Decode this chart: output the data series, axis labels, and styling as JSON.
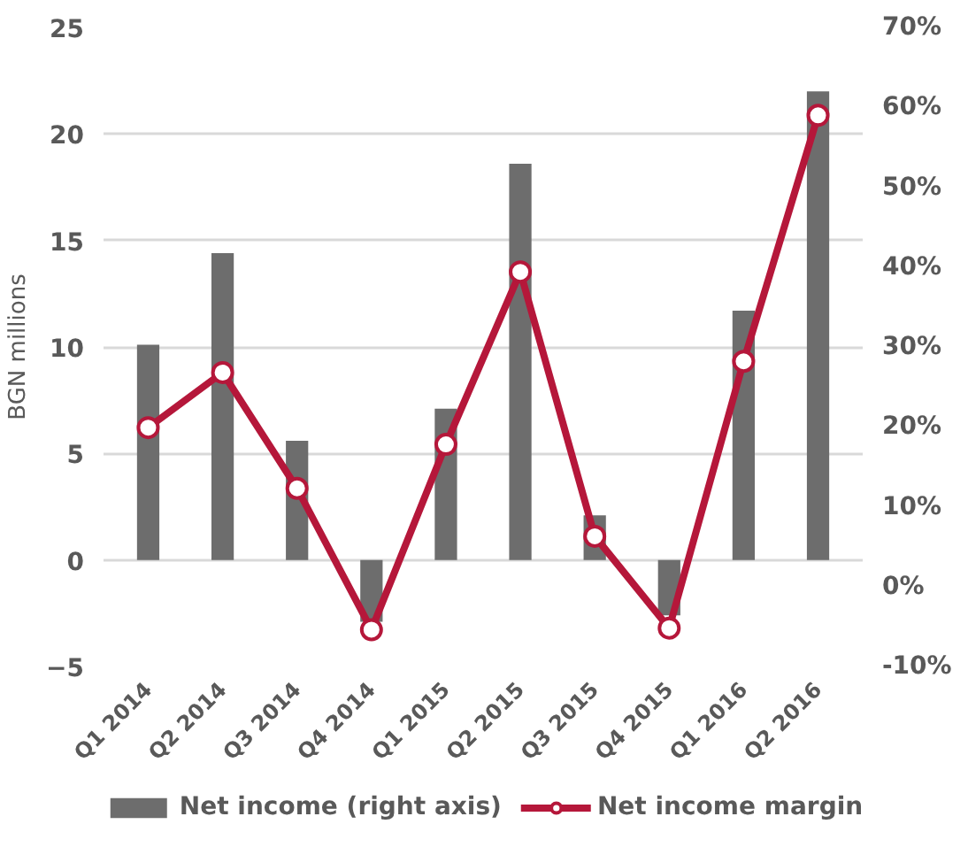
{
  "chart_data": {
    "type": "bar",
    "ylabel": "BGN millions",
    "categories": [
      "Q1 2014",
      "Q2 2014",
      "Q3 2014",
      "Q4 2014",
      "Q1 2015",
      "Q2 2015",
      "Q3 2015",
      "Q4 2015",
      "Q1 2016",
      "Q2 2016"
    ],
    "series": [
      {
        "name": "Net income (right axis)",
        "color": "#6d6d6d",
        "values": [
          10.1,
          14.4,
          5.6,
          -2.9,
          7.1,
          18.6,
          2.1,
          -2.6,
          11.7,
          22.0
        ]
      },
      {
        "name": "Net income margin",
        "type": "line",
        "axis": "y2",
        "color": "#b5173a",
        "marker": "circle",
        "values": [
          19.9,
          26.8,
          12.3,
          -5.4,
          17.8,
          39.4,
          6.3,
          -5.2,
          28.2,
          59.0
        ]
      }
    ],
    "ylim": [
      -5,
      25
    ],
    "yticks": [
      -5,
      0,
      5,
      10,
      15,
      20,
      25
    ],
    "y2lim": [
      -10,
      70
    ],
    "y2ticks": [
      {
        "value": -10,
        "label": "-10%"
      },
      {
        "value": 0,
        "label": "0%"
      },
      {
        "value": 10,
        "label": "10%"
      },
      {
        "value": 20,
        "label": "20%"
      },
      {
        "value": 30,
        "label": "30%"
      },
      {
        "value": 40,
        "label": "40%"
      },
      {
        "value": 50,
        "label": "50%"
      },
      {
        "value": 60,
        "label": "60%"
      },
      {
        "value": 70,
        "label": "70%"
      }
    ],
    "grid": "y",
    "legend": "bottom"
  }
}
